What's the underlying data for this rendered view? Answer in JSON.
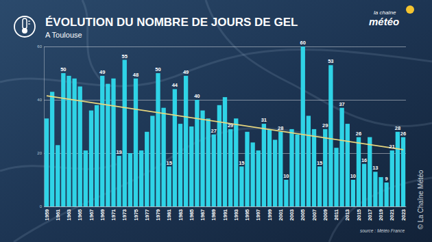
{
  "chart_data": {
    "type": "bar",
    "title": "ÉVOLUTION DU NOMBRE DE JOURS DE GEL",
    "subtitle": "A Toulouse",
    "source": "source : Météo France",
    "credit": "© La Chaîne Météo",
    "logo": [
      "la chaîne",
      "météo"
    ],
    "categories": [
      "1959",
      null,
      "1961",
      null,
      "1963",
      null,
      "1965",
      null,
      "1967",
      null,
      "1969",
      null,
      "1971",
      null,
      "1973",
      null,
      "1975",
      null,
      "1977",
      null,
      "1979",
      null,
      "1981",
      null,
      "1983",
      null,
      "1985",
      null,
      "1987",
      null,
      "1989",
      null,
      "1991",
      null,
      "1993",
      null,
      "1995",
      null,
      "1997",
      null,
      "1999",
      null,
      "2001",
      null,
      "2003",
      null,
      "2005",
      null,
      "2007",
      null,
      "2009",
      null,
      "2011",
      null,
      "2013",
      null,
      "2015",
      null,
      "2017",
      null,
      "2019",
      null,
      "2021",
      null,
      "2023"
    ],
    "values": [
      33,
      43,
      23,
      50,
      49,
      48,
      45,
      21,
      36,
      38,
      49,
      46,
      48,
      19,
      55,
      20,
      48,
      21,
      28,
      34,
      50,
      37,
      15,
      44,
      31,
      49,
      30,
      40,
      36,
      33,
      27,
      38,
      41,
      29,
      33,
      15,
      28,
      24,
      21,
      31,
      29,
      25,
      28,
      10,
      29,
      27,
      60,
      34,
      29,
      15,
      29,
      53,
      22,
      37,
      31,
      10,
      26,
      16,
      26,
      13,
      11,
      9,
      21,
      28,
      26
    ],
    "value_labels": [
      null,
      null,
      null,
      "50",
      null,
      null,
      null,
      null,
      null,
      null,
      "49",
      null,
      null,
      "19",
      "55",
      null,
      "48",
      null,
      null,
      null,
      "50",
      null,
      "15",
      "44",
      null,
      "49",
      null,
      "40",
      null,
      null,
      "27",
      null,
      null,
      "29",
      null,
      "15",
      null,
      null,
      null,
      "31",
      null,
      null,
      "28",
      "10",
      null,
      null,
      "60",
      null,
      null,
      "15",
      "29",
      "53",
      null,
      "37",
      null,
      "10",
      "26",
      "16",
      null,
      "13",
      null,
      "9",
      "21",
      "28",
      "26"
    ],
    "color": "#2fd3e6",
    "data_labels": true,
    "trend": {
      "values": [
        41.5,
        21.3
      ],
      "color": "#e8d77e"
    },
    "ylim": [
      0,
      60
    ],
    "yticks": [
      0,
      20,
      40,
      60
    ],
    "grid": true
  }
}
